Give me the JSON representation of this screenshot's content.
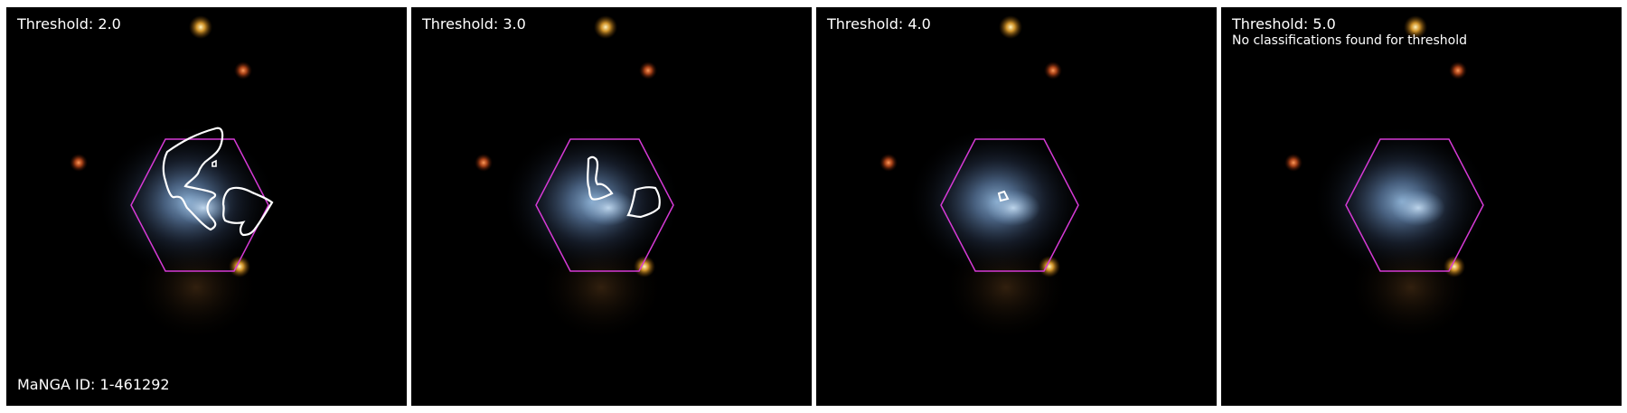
{
  "colors": {
    "hexagon": "#d63ad6",
    "contour": "#ffffff",
    "background": "#000000",
    "text": "#ffffff"
  },
  "panels": [
    {
      "title": "Threshold: 2.0",
      "note": "",
      "footer": "MaNGA ID: 1-461292",
      "contour_count": 3
    },
    {
      "title": "Threshold: 3.0",
      "note": "",
      "footer": "",
      "contour_count": 2
    },
    {
      "title": "Threshold: 4.0",
      "note": "",
      "footer": "",
      "contour_count": 1
    },
    {
      "title": "Threshold: 5.0",
      "note": "No classifications found for threshold",
      "footer": "",
      "contour_count": 0
    }
  ]
}
